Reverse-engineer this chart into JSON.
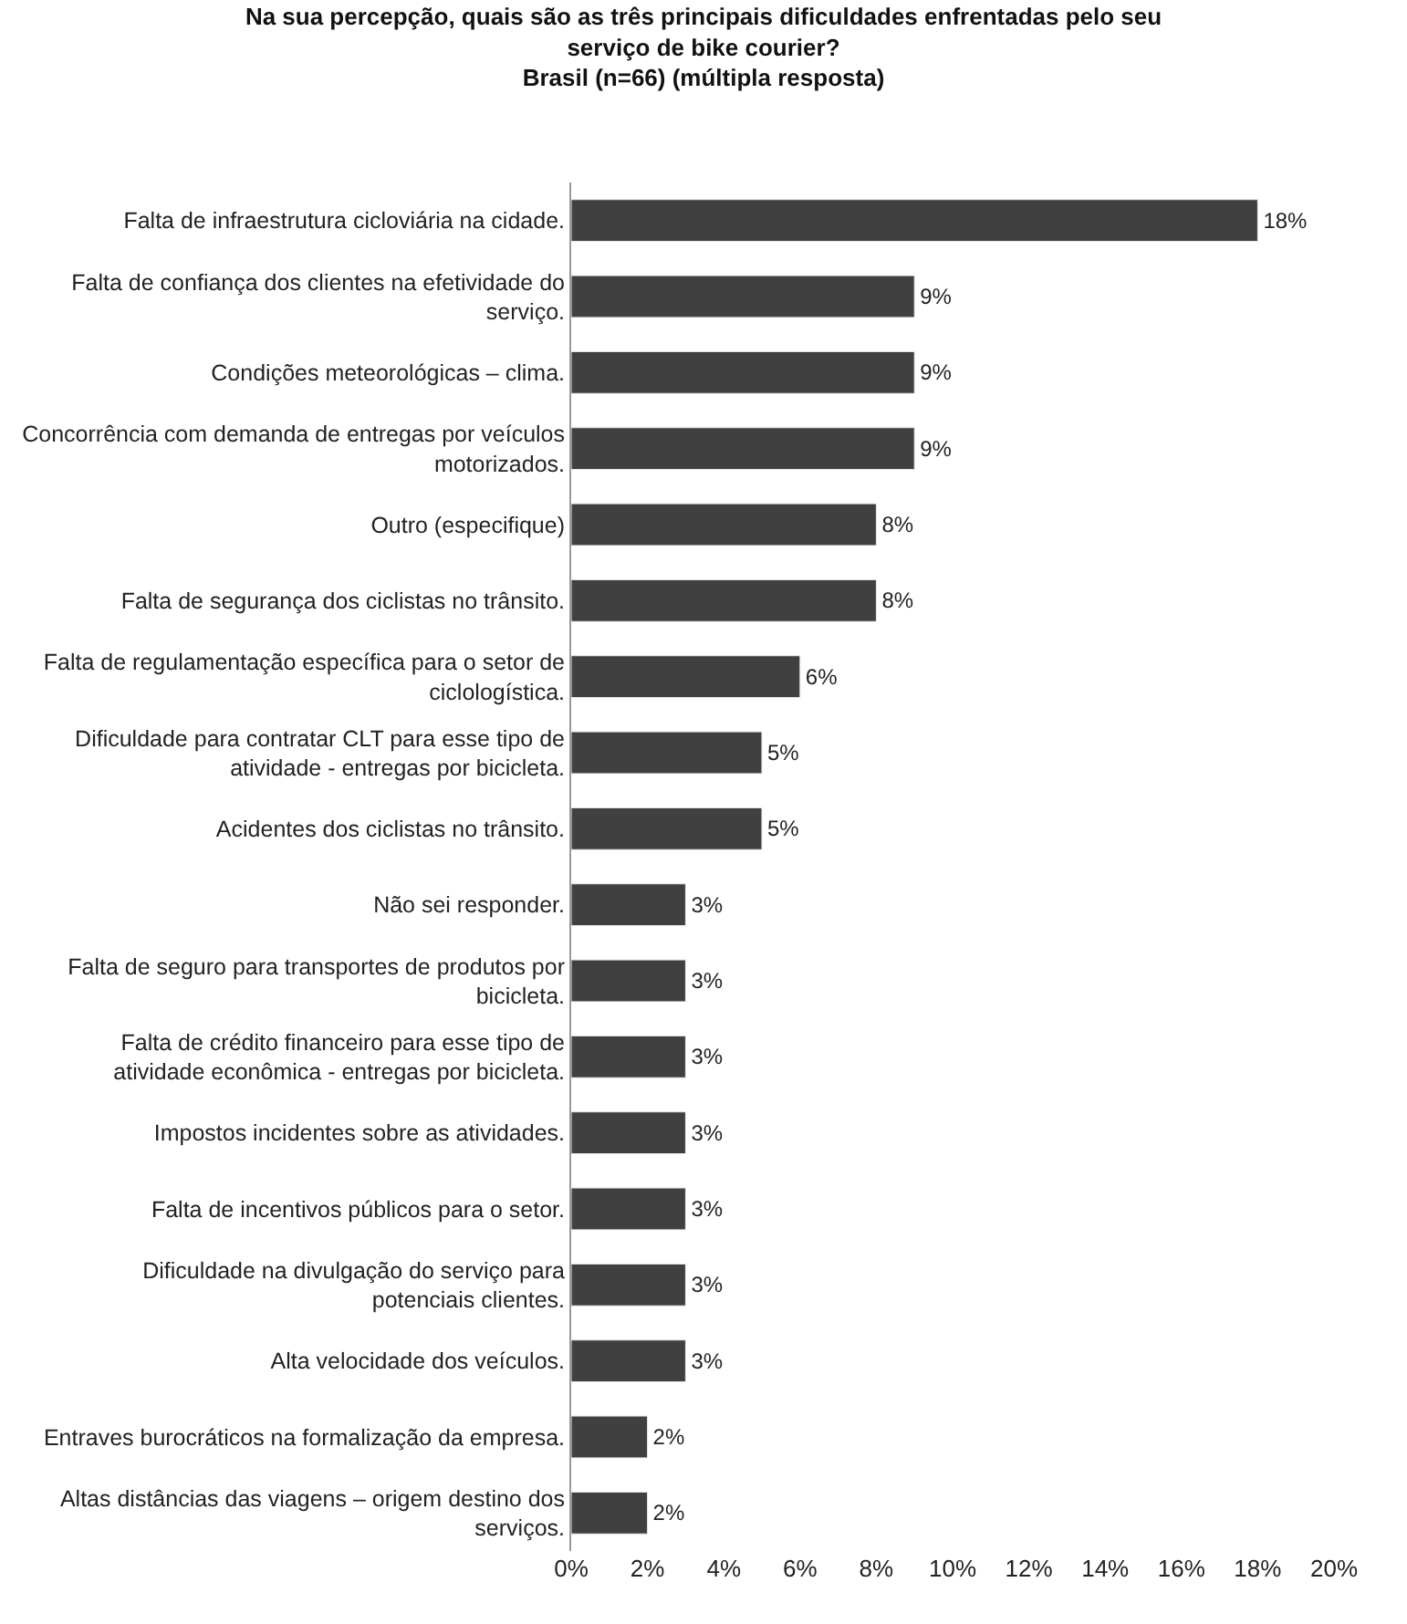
{
  "chart_data": {
    "type": "bar",
    "orientation": "horizontal",
    "title": "Na sua percepção, quais são as três principais dificuldades enfrentadas pelo seu serviço de bike courier?",
    "subtitle": "Brasil (n=66) (múltipla resposta)",
    "categories": [
      "Falta de infraestrutura cicloviária na cidade.",
      "Falta de confiança dos clientes na efetividade do serviço.",
      "Condições meteorológicas – clima.",
      "Concorrência com demanda de entregas por veículos motorizados.",
      "Outro (especifique)",
      "Falta de segurança dos ciclistas no trânsito.",
      "Falta de regulamentação específica para o setor de ciclologística.",
      "Dificuldade para contratar CLT para esse tipo de atividade - entregas por bicicleta.",
      "Acidentes dos ciclistas no trânsito.",
      "Não sei responder.",
      "Falta de seguro para transportes de produtos por bicicleta.",
      "Falta de crédito financeiro para esse tipo de atividade econômica - entregas por bicicleta.",
      "Impostos incidentes sobre as atividades.",
      "Falta de incentivos públicos para o setor.",
      "Dificuldade na divulgação do serviço para potenciais clientes.",
      "Alta velocidade dos veículos.",
      "Entraves burocráticos na formalização da empresa.",
      "Altas distâncias das viagens – origem destino dos serviços."
    ],
    "values": [
      18,
      9,
      9,
      9,
      8,
      8,
      6,
      5,
      5,
      3,
      3,
      3,
      3,
      3,
      3,
      3,
      2,
      2
    ],
    "value_labels": [
      "18%",
      "9%",
      "9%",
      "9%",
      "8%",
      "8%",
      "6%",
      "5%",
      "5%",
      "3%",
      "3%",
      "3%",
      "3%",
      "3%",
      "3%",
      "3%",
      "2%",
      "2%"
    ],
    "color": "#404040",
    "xlim": [
      0,
      20
    ],
    "xticks": [
      {
        "value": 0,
        "label": "0%"
      },
      {
        "value": 2,
        "label": "2%"
      },
      {
        "value": 4,
        "label": "4%"
      },
      {
        "value": 6,
        "label": "6%"
      },
      {
        "value": 8,
        "label": "8%"
      },
      {
        "value": 10,
        "label": "10%"
      },
      {
        "value": 12,
        "label": "12%"
      },
      {
        "value": 14,
        "label": "14%"
      },
      {
        "value": 16,
        "label": "16%"
      },
      {
        "value": 18,
        "label": "18%"
      },
      {
        "value": 20,
        "label": "20%"
      }
    ],
    "legend": false
  }
}
